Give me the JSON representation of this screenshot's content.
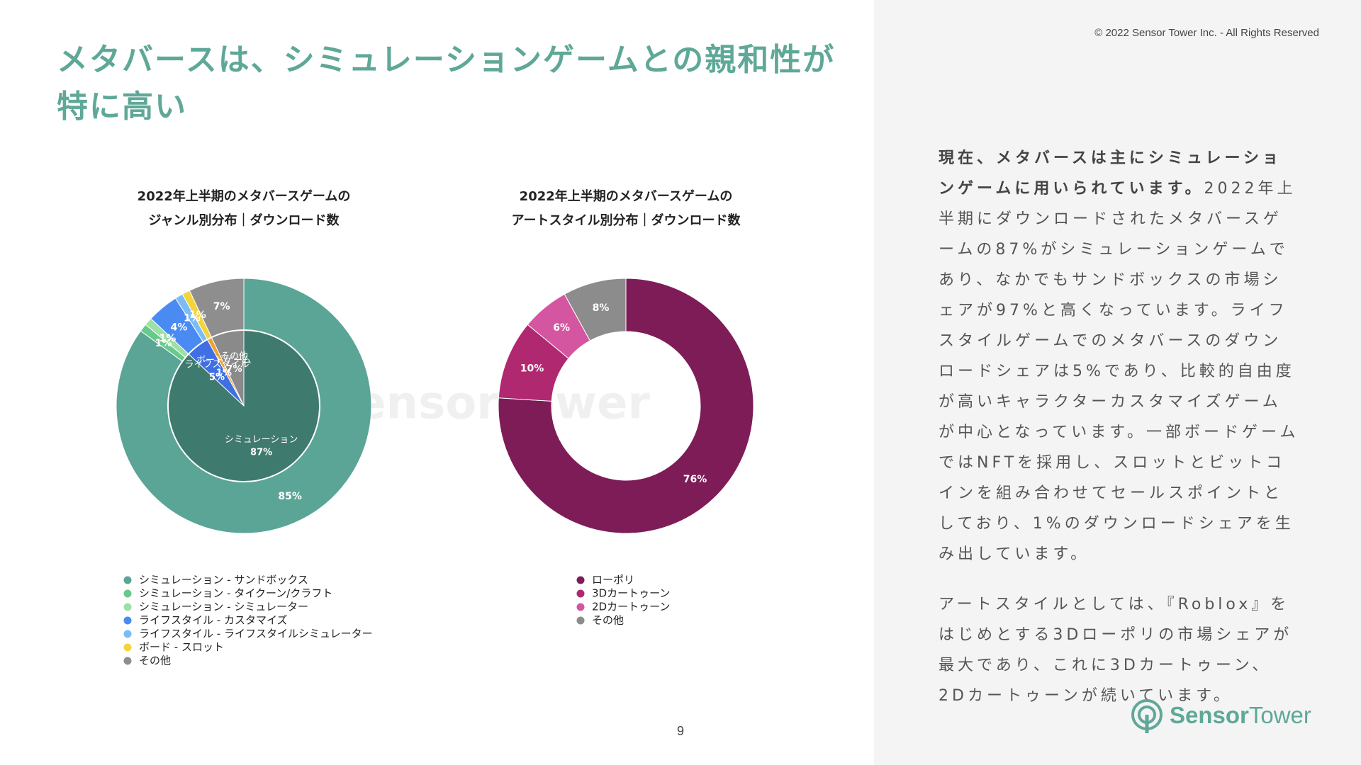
{
  "title": [
    "メタバースは、シミュレーションゲームとの親和性が",
    "特に高い"
  ],
  "copyright": "© 2022 Sensor Tower Inc. - All Rights Reserved",
  "watermark": "SensorTower",
  "chart_data": [
    {
      "type": "donut",
      "title": [
        "2022年上半期のメタバースゲームの",
        "ジャンル別分布｜ダウンロード数"
      ],
      "rings": [
        {
          "categories": [
            "シミュレーション - サンドボックス",
            "シミュレーション - タイクーン/クラフト",
            "シミュレーション - シミュレーター",
            "ライフスタイル - カスタマイズ",
            "ライフスタイル - ライフスタイルシミュレーター",
            "ボード - スロット",
            "その他"
          ],
          "values": [
            85,
            1,
            1,
            4,
            1,
            1,
            7
          ],
          "value_labels": [
            "85%",
            "1%",
            "1%",
            "4%",
            "1%",
            "1%",
            "7%"
          ],
          "colors": [
            "#5ba596",
            "#67c98a",
            "#9ddfa6",
            "#4a8bf3",
            "#7cbcf6",
            "#f3d43d",
            "#8e8e8e"
          ]
        },
        {
          "categories": [
            "シミュレーション",
            "ライフスタイル",
            "ボードゲーム",
            "その他"
          ],
          "values": [
            87,
            5,
            1,
            7
          ],
          "value_labels": [
            "87%",
            "5%",
            "1%",
            "7%"
          ],
          "colors": [
            "#3f7a6e",
            "#3f6fe3",
            "#efa232",
            "#8a8a8a"
          ]
        }
      ]
    },
    {
      "type": "donut",
      "title": [
        "2022年上半期のメタバースゲームの",
        "アートスタイル別分布｜ダウンロード数"
      ],
      "rings": [
        {
          "categories": [
            "ローポリ",
            "3Dカートゥーン",
            "2Dカートゥーン",
            "その他"
          ],
          "values": [
            76,
            10,
            6,
            8
          ],
          "value_labels": [
            "76%",
            "10%",
            "6%",
            "8%"
          ],
          "colors": [
            "#7e1c58",
            "#b02870",
            "#d456a1",
            "#8c8c8c"
          ]
        }
      ]
    }
  ],
  "body": [
    {
      "lead": "現在、メタバースは主にシミュレーションゲームに用いられています。",
      "text": "2022年上半期にダウンロードされたメタバースゲームの87%がシミュレーションゲームであり、なかでもサンドボックスの市場シェアが97%と高くなっています。ライフスタイルゲームでのメタバースのダウンロードシェアは5%であり、比較的自由度が高いキャラクターカスタマイズゲームが中心となっています。一部ボードゲームではNFTを採用し、スロットとビットコインを組み合わせてセールスポイントとしており、1%のダウンロードシェアを生み出しています。"
    },
    {
      "text": "アートスタイルとしては、『Roblox』をはじめとする3Dローポリの市場シェアが最大であり、これに3Dカートゥーン、2Dカートゥーンが続いています。"
    }
  ],
  "page_number": "9",
  "logo": [
    "Sensor",
    "Tower"
  ]
}
